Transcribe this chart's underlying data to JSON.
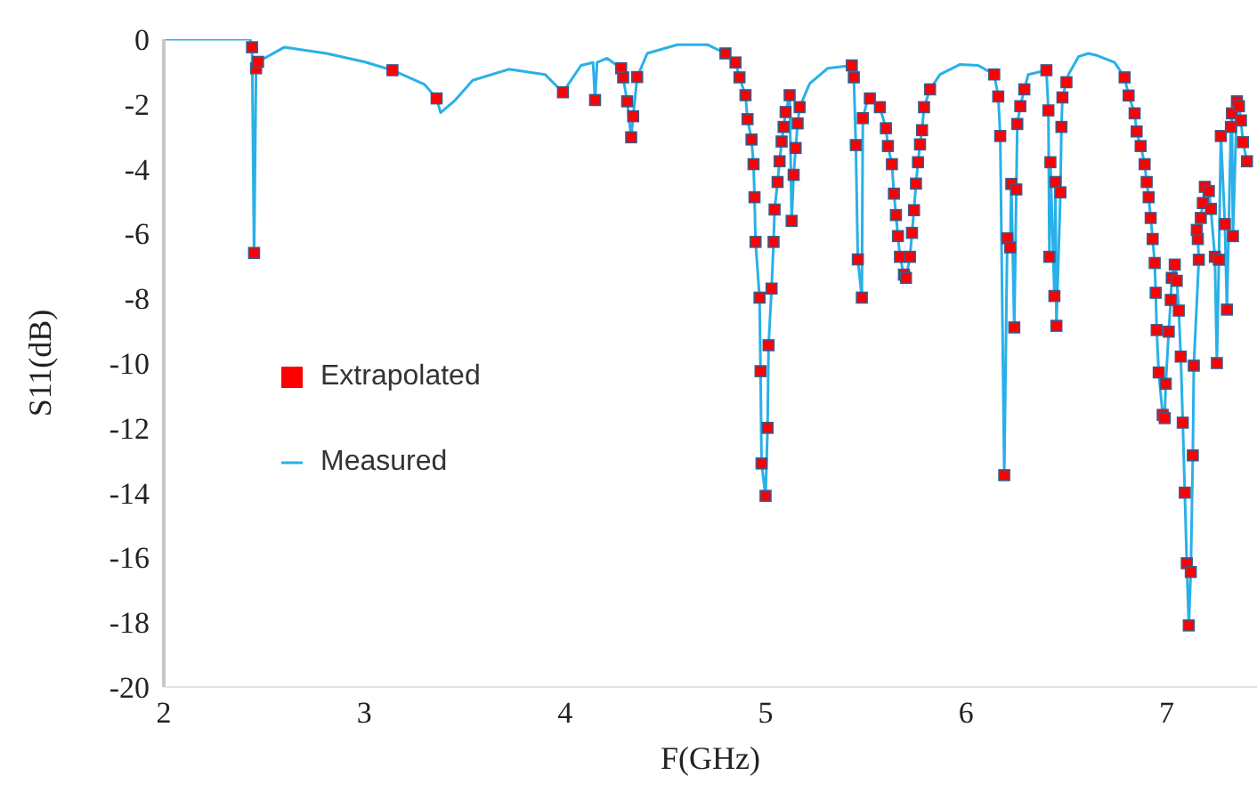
{
  "chart_data": {
    "type": "line",
    "xlabel": "F(GHz)",
    "ylabel": "S11(dB)",
    "xlim": [
      2,
      7.45
    ],
    "xticks": [
      2,
      3,
      4,
      5,
      6,
      7
    ],
    "ylim": [
      -20,
      0
    ],
    "yticks": [
      -20,
      -18,
      -16,
      -14,
      -12,
      -10,
      -8,
      -6,
      -4,
      -2,
      0
    ],
    "grid": false,
    "legend": "left",
    "series": [
      {
        "name": "Measured",
        "color": "#29b0e8",
        "marker": "none",
        "x": [
          2.0,
          2.1,
          2.2,
          2.3,
          2.43,
          2.44,
          2.45,
          2.46,
          2.47,
          2.6,
          2.81,
          3.0,
          3.14,
          3.3,
          3.36,
          3.38,
          3.45,
          3.54,
          3.72,
          3.9,
          3.99,
          4.08,
          4.14,
          4.15,
          4.16,
          4.21,
          4.28,
          4.29,
          4.31,
          4.33,
          4.34,
          4.36,
          4.41,
          4.56,
          4.71,
          4.8,
          4.85,
          4.87,
          4.9,
          4.91,
          4.93,
          4.94,
          4.945,
          4.95,
          4.97,
          4.975,
          4.98,
          5.0,
          5.01,
          5.015,
          5.03,
          5.04,
          5.045,
          5.06,
          5.07,
          5.08,
          5.09,
          5.1,
          5.12,
          5.13,
          5.14,
          5.15,
          5.16,
          5.17,
          5.22,
          5.31,
          5.43,
          5.44,
          5.45,
          5.46,
          5.48,
          5.485,
          5.51,
          5.52,
          5.57,
          5.6,
          5.61,
          5.63,
          5.64,
          5.65,
          5.66,
          5.67,
          5.69,
          5.7,
          5.72,
          5.73,
          5.74,
          5.75,
          5.76,
          5.77,
          5.78,
          5.79,
          5.82,
          5.87,
          5.97,
          6.06,
          6.14,
          6.16,
          6.17,
          6.19,
          6.205,
          6.22,
          6.225,
          6.24,
          6.25,
          6.255,
          6.27,
          6.29,
          6.31,
          6.4,
          6.41,
          6.415,
          6.42,
          6.44,
          6.445,
          6.45,
          6.47,
          6.475,
          6.48,
          6.5,
          6.51,
          6.56,
          6.61,
          6.65,
          6.74,
          6.79,
          6.81,
          6.84,
          6.85,
          6.87,
          6.89,
          6.9,
          6.91,
          6.92,
          6.93,
          6.94,
          6.945,
          6.95,
          6.96,
          6.98,
          6.99,
          6.995,
          7.01,
          7.02,
          7.025,
          7.04,
          7.05,
          7.06,
          7.07,
          7.08,
          7.09,
          7.1,
          7.11,
          7.12,
          7.13,
          7.135,
          7.16,
          7.155,
          7.15,
          7.17,
          7.18,
          7.19,
          7.21,
          7.22,
          7.24,
          7.25,
          7.26,
          7.27,
          7.29,
          7.3,
          7.32,
          7.325,
          7.33,
          7.35,
          7.36,
          7.37,
          7.38,
          7.4,
          7.42
        ],
        "values": [
          0,
          0,
          0,
          0,
          0,
          -0.25,
          -6.6,
          -0.9,
          -0.7,
          -0.25,
          -0.44,
          -0.7,
          -0.96,
          -1.4,
          -1.83,
          -2.27,
          -1.9,
          -1.27,
          -0.93,
          -1.09,
          -1.64,
          -0.81,
          -0.72,
          -1.88,
          -0.72,
          -0.59,
          -0.9,
          -1.18,
          -1.92,
          -3.03,
          -2.38,
          -1.17,
          -0.44,
          -0.17,
          -0.17,
          -0.44,
          -0.72,
          -1.18,
          -1.73,
          -2.47,
          -3.1,
          -3.86,
          -4.88,
          -6.26,
          -7.98,
          -10.25,
          -13.1,
          -14.1,
          -12.0,
          -9.45,
          -7.7,
          -6.26,
          -5.26,
          -4.41,
          -3.77,
          -3.16,
          -2.71,
          -2.25,
          -1.73,
          -5.61,
          -4.19,
          -3.36,
          -2.6,
          -2.1,
          -1.37,
          -0.9,
          -0.81,
          -1.18,
          -3.27,
          -6.8,
          -7.98,
          -2.44,
          -1.83,
          -1.83,
          -2.1,
          -2.75,
          -3.3,
          -3.86,
          -4.77,
          -5.43,
          -6.08,
          -6.72,
          -7.27,
          -7.37,
          -6.72,
          -5.98,
          -5.28,
          -4.46,
          -3.8,
          -3.25,
          -2.81,
          -2.1,
          -1.55,
          -1.09,
          -0.78,
          -0.81,
          -1.09,
          -1.77,
          -2.99,
          -13.46,
          -6.15,
          -6.43,
          -4.47,
          -8.9,
          -4.64,
          -2.62,
          -2.07,
          -1.55,
          -1.09,
          -0.96,
          -2.2,
          -6.72,
          -3.8,
          -7.93,
          -4.41,
          -8.85,
          -4.73,
          -2.71,
          -1.8,
          -1.33,
          -1.09,
          -0.54,
          -0.44,
          -0.5,
          -0.72,
          -1.18,
          -1.74,
          -2.29,
          -2.85,
          -3.3,
          -3.86,
          -4.41,
          -4.88,
          -5.52,
          -6.17,
          -6.91,
          -7.83,
          -8.98,
          -10.29,
          -11.6,
          -11.7,
          -10.64,
          -9.03,
          -8.05,
          -7.37,
          -6.96,
          -7.46,
          -8.38,
          -9.8,
          -11.84,
          -14.0,
          -16.18,
          -18.1,
          -16.45,
          -12.85,
          -10.08,
          -6.81,
          -6.17,
          -5.89,
          -5.52,
          -5.06,
          -4.56,
          -4.69,
          -5.24,
          -6.72,
          -10.0,
          -6.81,
          -2.99,
          -5.71,
          -8.35,
          -2.71,
          -2.29,
          -6.08,
          -1.92,
          -2.07,
          -2.51,
          -3.18,
          -3.77,
          -3.95
        ]
      },
      {
        "name": "Extrapolated",
        "type": "scatter",
        "color": "#ff0000",
        "marker": "square",
        "x": [
          2.44,
          2.45,
          2.46,
          2.47,
          3.14,
          3.36,
          3.99,
          4.15,
          4.28,
          4.29,
          4.31,
          4.33,
          4.34,
          4.36,
          4.8,
          4.85,
          4.87,
          4.9,
          4.91,
          4.93,
          4.94,
          4.945,
          4.95,
          4.97,
          4.975,
          4.98,
          5.0,
          5.01,
          5.015,
          5.03,
          5.04,
          5.045,
          5.06,
          5.07,
          5.08,
          5.09,
          5.1,
          5.12,
          5.13,
          5.14,
          5.15,
          5.16,
          5.17,
          5.43,
          5.44,
          5.45,
          5.46,
          5.48,
          5.485,
          5.52,
          5.57,
          5.6,
          5.61,
          5.63,
          5.64,
          5.65,
          5.66,
          5.67,
          5.69,
          5.7,
          5.72,
          5.73,
          5.74,
          5.75,
          5.76,
          5.77,
          5.78,
          5.79,
          5.82,
          6.14,
          6.16,
          6.17,
          6.19,
          6.205,
          6.22,
          6.225,
          6.24,
          6.25,
          6.255,
          6.27,
          6.29,
          6.4,
          6.41,
          6.415,
          6.42,
          6.44,
          6.445,
          6.45,
          6.47,
          6.475,
          6.48,
          6.5,
          6.79,
          6.81,
          6.84,
          6.85,
          6.87,
          6.89,
          6.9,
          6.91,
          6.92,
          6.93,
          6.94,
          6.945,
          6.95,
          6.96,
          6.98,
          6.99,
          6.995,
          7.01,
          7.02,
          7.025,
          7.04,
          7.05,
          7.06,
          7.07,
          7.08,
          7.09,
          7.1,
          7.11,
          7.12,
          7.13,
          7.135,
          7.16,
          7.155,
          7.15,
          7.17,
          7.18,
          7.19,
          7.21,
          7.22,
          7.24,
          7.25,
          7.26,
          7.27,
          7.29,
          7.3,
          7.32,
          7.325,
          7.33,
          7.35,
          7.36,
          7.37,
          7.38,
          7.4
        ],
        "values": [
          -0.25,
          -6.6,
          -0.9,
          -0.7,
          -0.96,
          -1.83,
          -1.64,
          -1.88,
          -0.9,
          -1.18,
          -1.92,
          -3.03,
          -2.38,
          -1.17,
          -0.44,
          -0.72,
          -1.18,
          -1.73,
          -2.47,
          -3.1,
          -3.86,
          -4.88,
          -6.26,
          -7.98,
          -10.25,
          -13.1,
          -14.1,
          -12.0,
          -9.45,
          -7.7,
          -6.26,
          -5.26,
          -4.41,
          -3.77,
          -3.16,
          -2.71,
          -2.25,
          -1.73,
          -5.61,
          -4.19,
          -3.36,
          -2.6,
          -2.1,
          -0.81,
          -1.18,
          -3.27,
          -6.8,
          -7.98,
          -2.44,
          -1.83,
          -2.1,
          -2.75,
          -3.3,
          -3.86,
          -4.77,
          -5.43,
          -6.08,
          -6.72,
          -7.27,
          -7.37,
          -6.72,
          -5.98,
          -5.28,
          -4.46,
          -3.8,
          -3.25,
          -2.81,
          -2.1,
          -1.55,
          -1.09,
          -1.77,
          -2.99,
          -13.46,
          -6.15,
          -6.43,
          -4.47,
          -8.9,
          -4.64,
          -2.62,
          -2.07,
          -1.55,
          -0.96,
          -2.2,
          -6.72,
          -3.8,
          -7.93,
          -4.41,
          -8.85,
          -4.73,
          -2.71,
          -1.8,
          -1.33,
          -1.18,
          -1.74,
          -2.29,
          -2.85,
          -3.3,
          -3.86,
          -4.41,
          -4.88,
          -5.52,
          -6.17,
          -6.91,
          -7.83,
          -8.98,
          -10.29,
          -11.6,
          -11.7,
          -10.64,
          -9.03,
          -8.05,
          -7.37,
          -6.96,
          -7.46,
          -8.38,
          -9.8,
          -11.84,
          -14.0,
          -16.18,
          -18.1,
          -16.45,
          -12.85,
          -10.08,
          -6.81,
          -6.17,
          -5.89,
          -5.52,
          -5.06,
          -4.56,
          -4.69,
          -5.24,
          -6.72,
          -10.0,
          -6.81,
          -2.99,
          -5.71,
          -8.35,
          -2.71,
          -2.29,
          -6.08,
          -1.92,
          -2.07,
          -2.51,
          -3.18,
          -3.77
        ]
      }
    ]
  }
}
